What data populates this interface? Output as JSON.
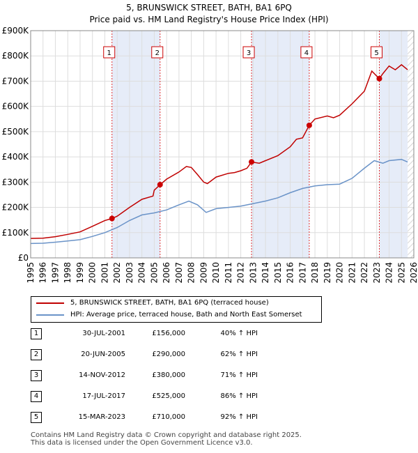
{
  "chart_data": {
    "type": "line",
    "title": "5, BRUNSWICK STREET, BATH, BA1 6PQ",
    "subtitle": "Price paid vs. HM Land Registry's House Price Index (HPI)",
    "xlim": [
      1995,
      2026
    ],
    "ylim": [
      0,
      900000
    ],
    "x_ticks": [
      "1995",
      "1996",
      "1997",
      "1998",
      "1999",
      "2000",
      "2001",
      "2002",
      "2003",
      "2004",
      "2005",
      "2006",
      "2007",
      "2008",
      "2009",
      "2010",
      "2011",
      "2012",
      "2013",
      "2014",
      "2015",
      "2016",
      "2017",
      "2018",
      "2019",
      "2020",
      "2021",
      "2022",
      "2023",
      "2024",
      "2025",
      "2026"
    ],
    "y_ticks": [
      {
        "value": 0,
        "label": "£0"
      },
      {
        "value": 100000,
        "label": "£100K"
      },
      {
        "value": 200000,
        "label": "£200K"
      },
      {
        "value": 300000,
        "label": "£300K"
      },
      {
        "value": 400000,
        "label": "£400K"
      },
      {
        "value": 500000,
        "label": "£500K"
      },
      {
        "value": 600000,
        "label": "£600K"
      },
      {
        "value": 700000,
        "label": "£700K"
      },
      {
        "value": 800000,
        "label": "£800K"
      },
      {
        "value": 900000,
        "label": "£900K"
      }
    ],
    "series": [
      {
        "name": "5, BRUNSWICK STREET, BATH, BA1 6PQ (terraced house)",
        "color": "#c00000",
        "points": [
          [
            1995.0,
            77000
          ],
          [
            1996.0,
            78000
          ],
          [
            1997.0,
            84000
          ],
          [
            1998.0,
            93000
          ],
          [
            1999.0,
            103000
          ],
          [
            2000.0,
            125000
          ],
          [
            2001.0,
            148000
          ],
          [
            2001.58,
            156000
          ],
          [
            2002.0,
            165000
          ],
          [
            2003.0,
            200000
          ],
          [
            2004.0,
            232000
          ],
          [
            2004.9,
            245000
          ],
          [
            2005.0,
            268000
          ],
          [
            2005.47,
            290000
          ],
          [
            2006.0,
            312000
          ],
          [
            2007.0,
            340000
          ],
          [
            2007.6,
            362000
          ],
          [
            2008.0,
            358000
          ],
          [
            2008.5,
            330000
          ],
          [
            2009.0,
            300000
          ],
          [
            2009.3,
            294000
          ],
          [
            2010.0,
            320000
          ],
          [
            2011.0,
            335000
          ],
          [
            2011.5,
            338000
          ],
          [
            2012.0,
            345000
          ],
          [
            2012.5,
            355000
          ],
          [
            2012.87,
            380000
          ],
          [
            2013.5,
            375000
          ],
          [
            2014.0,
            385000
          ],
          [
            2015.0,
            405000
          ],
          [
            2016.0,
            440000
          ],
          [
            2016.5,
            470000
          ],
          [
            2017.0,
            475000
          ],
          [
            2017.54,
            525000
          ],
          [
            2018.0,
            550000
          ],
          [
            2019.0,
            562000
          ],
          [
            2019.5,
            555000
          ],
          [
            2020.0,
            565000
          ],
          [
            2021.0,
            610000
          ],
          [
            2022.0,
            660000
          ],
          [
            2022.6,
            740000
          ],
          [
            2023.0,
            720000
          ],
          [
            2023.21,
            710000
          ],
          [
            2023.5,
            730000
          ],
          [
            2024.0,
            760000
          ],
          [
            2024.5,
            745000
          ],
          [
            2025.0,
            765000
          ],
          [
            2025.5,
            745000
          ]
        ]
      },
      {
        "name": "HPI: Average price, terraced house, Bath and North East Somerset",
        "color": "#6a93c8",
        "points": [
          [
            1995.0,
            57000
          ],
          [
            1996.0,
            58000
          ],
          [
            1997.0,
            62000
          ],
          [
            1998.0,
            67000
          ],
          [
            1999.0,
            72000
          ],
          [
            2000.0,
            85000
          ],
          [
            2001.0,
            100000
          ],
          [
            2002.0,
            120000
          ],
          [
            2003.0,
            148000
          ],
          [
            2004.0,
            170000
          ],
          [
            2005.0,
            178000
          ],
          [
            2006.0,
            190000
          ],
          [
            2007.0,
            210000
          ],
          [
            2007.8,
            225000
          ],
          [
            2008.5,
            210000
          ],
          [
            2009.2,
            180000
          ],
          [
            2010.0,
            195000
          ],
          [
            2011.0,
            200000
          ],
          [
            2012.0,
            205000
          ],
          [
            2013.0,
            215000
          ],
          [
            2014.0,
            225000
          ],
          [
            2015.0,
            238000
          ],
          [
            2016.0,
            258000
          ],
          [
            2017.0,
            275000
          ],
          [
            2018.0,
            285000
          ],
          [
            2019.0,
            290000
          ],
          [
            2020.0,
            292000
          ],
          [
            2021.0,
            315000
          ],
          [
            2022.0,
            355000
          ],
          [
            2022.8,
            385000
          ],
          [
            2023.5,
            375000
          ],
          [
            2024.0,
            385000
          ],
          [
            2025.0,
            390000
          ],
          [
            2025.5,
            380000
          ]
        ]
      }
    ],
    "sales": [
      {
        "label": "1",
        "x": 2001.58,
        "y": 156000
      },
      {
        "label": "2",
        "x": 2005.47,
        "y": 290000
      },
      {
        "label": "3",
        "x": 2012.87,
        "y": 380000
      },
      {
        "label": "4",
        "x": 2017.54,
        "y": 525000
      },
      {
        "label": "5",
        "x": 2023.21,
        "y": 710000
      }
    ],
    "shaded_ranges": [
      [
        2001.58,
        2005.47
      ],
      [
        2012.87,
        2017.54
      ],
      [
        2023.21,
        2025.5
      ]
    ],
    "forecast_hatch_from": 2025.5
  },
  "legend": {
    "items": [
      {
        "label": "5, BRUNSWICK STREET, BATH, BA1 6PQ (terraced house)",
        "color": "#c00000"
      },
      {
        "label": "HPI: Average price, terraced house, Bath and North East Somerset",
        "color": "#6a93c8"
      }
    ]
  },
  "transactions": [
    {
      "num": "1",
      "date": "30-JUL-2001",
      "price": "£156,000",
      "hpi": "40% ↑ HPI"
    },
    {
      "num": "2",
      "date": "20-JUN-2005",
      "price": "£290,000",
      "hpi": "62% ↑ HPI"
    },
    {
      "num": "3",
      "date": "14-NOV-2012",
      "price": "£380,000",
      "hpi": "71% ↑ HPI"
    },
    {
      "num": "4",
      "date": "17-JUL-2017",
      "price": "£525,000",
      "hpi": "86% ↑ HPI"
    },
    {
      "num": "5",
      "date": "15-MAR-2023",
      "price": "£710,000",
      "hpi": "92% ↑ HPI"
    }
  ],
  "footer": {
    "line1": "Contains HM Land Registry data © Crown copyright and database right 2025.",
    "line2": "This data is licensed under the Open Government Licence v3.0."
  }
}
